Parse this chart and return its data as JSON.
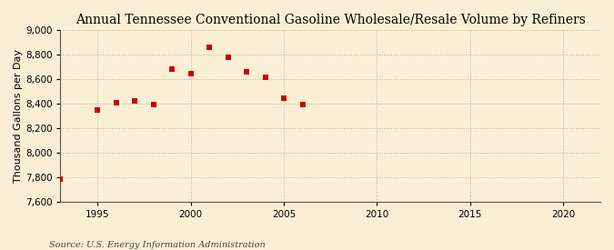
{
  "title": "Annual Tennessee Conventional Gasoline Wholesale/Resale Volume by Refiners",
  "ylabel": "Thousand Gallons per Day",
  "source": "Source: U.S. Energy Information Administration",
  "years": [
    1993,
    1995,
    1996,
    1997,
    1998,
    1999,
    2000,
    2001,
    2002,
    2003,
    2004,
    2005,
    2006
  ],
  "values": [
    7780,
    8350,
    8410,
    8420,
    8390,
    8680,
    8645,
    8860,
    8775,
    8655,
    8615,
    8440,
    8395
  ],
  "marker_color": "#cc0000",
  "marker": "s",
  "marker_size": 4,
  "xlim": [
    1993,
    2022
  ],
  "ylim": [
    7600,
    9000
  ],
  "yticks": [
    7600,
    7800,
    8000,
    8200,
    8400,
    8600,
    8800,
    9000
  ],
  "xticks": [
    1995,
    2000,
    2005,
    2010,
    2015,
    2020
  ],
  "grid_color": "#b0b0b0",
  "bg_color": "#faefd4",
  "title_fontsize": 10,
  "label_fontsize": 8,
  "tick_fontsize": 7.5,
  "source_fontsize": 7
}
